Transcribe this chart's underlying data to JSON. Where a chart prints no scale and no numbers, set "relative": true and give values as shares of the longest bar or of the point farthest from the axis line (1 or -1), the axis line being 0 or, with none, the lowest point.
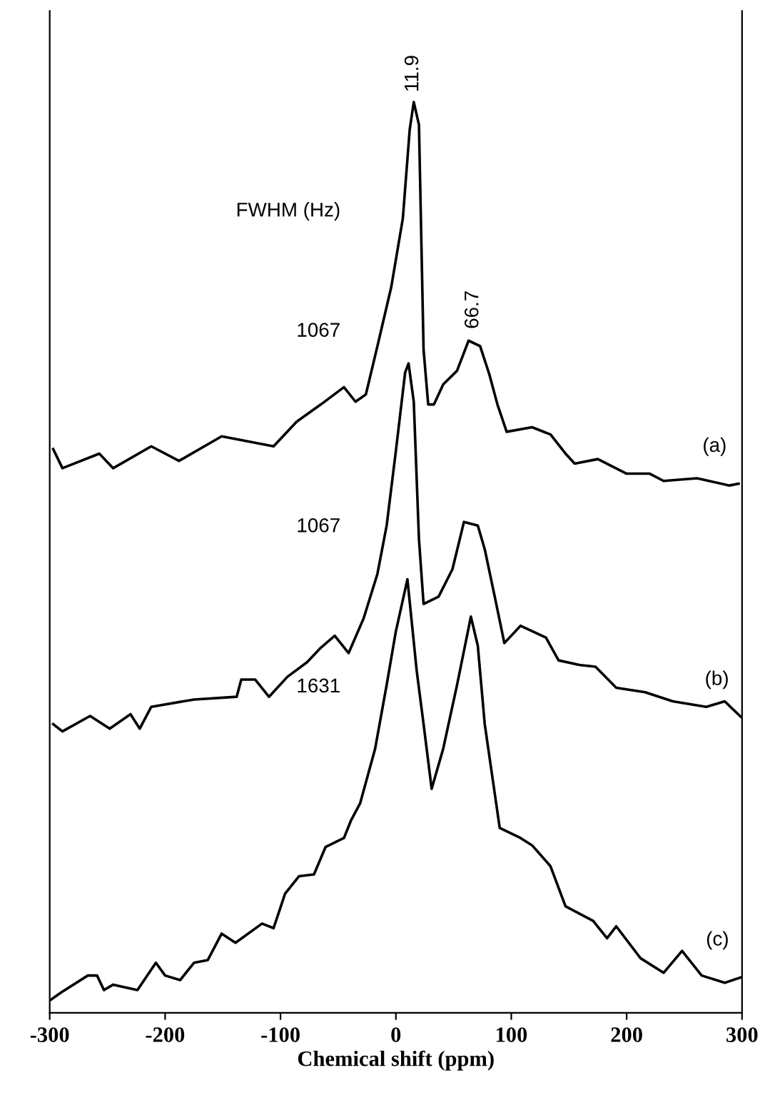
{
  "chart_data": {
    "type": "line",
    "relative": true,
    "xlabel": "Chemical shift (ppm)",
    "xlim": [
      -300,
      300
    ],
    "xticks": [
      -300,
      -200,
      -100,
      0,
      100,
      200,
      300
    ],
    "grid": false,
    "legend": false,
    "marker": "none",
    "line_style": "solid",
    "tick_labels": "x",
    "annotations": [
      {
        "text": "11.9",
        "x": 15,
        "y": 1.0
      },
      {
        "text": "66.7",
        "x": 67,
        "y": 0.74
      },
      "FWHM (Hz)",
      "1067",
      "1067",
      "1631"
    ],
    "series": [
      {
        "name": "(a)",
        "color": "#000000",
        "x": [
          -297,
          -289,
          -257,
          -245,
          -212,
          -188,
          -151,
          -106,
          -86,
          -65,
          -45,
          -35,
          -26,
          -16,
          -4,
          6,
          12,
          15.5,
          20,
          24,
          28,
          33,
          41,
          53,
          63,
          73,
          81,
          88,
          96,
          118,
          134,
          147,
          155,
          175,
          200,
          220,
          232,
          261,
          289,
          297
        ],
        "values": [
          0.619,
          0.598,
          0.614,
          0.598,
          0.622,
          0.606,
          0.633,
          0.622,
          0.649,
          0.668,
          0.687,
          0.671,
          0.679,
          0.732,
          0.797,
          0.872,
          0.97,
          1.0,
          0.975,
          0.728,
          0.668,
          0.668,
          0.69,
          0.705,
          0.738,
          0.732,
          0.701,
          0.668,
          0.638,
          0.643,
          0.635,
          0.614,
          0.603,
          0.608,
          0.592,
          0.592,
          0.584,
          0.587,
          0.579,
          0.581
        ]
      },
      {
        "name": "(b)",
        "color": "#000000",
        "x": [
          -297,
          -289,
          -265,
          -248,
          -230,
          -222,
          -212,
          -175,
          -138,
          -134,
          -122,
          -110,
          -94,
          -77,
          -65,
          -53,
          -41,
          -28,
          -16,
          -8,
          0,
          8,
          11,
          15.5,
          20,
          24,
          37,
          49,
          59,
          71,
          77,
          86,
          94,
          108,
          130,
          141,
          159,
          173,
          191,
          216,
          240,
          269,
          285,
          299
        ],
        "values": [
          0.317,
          0.309,
          0.326,
          0.312,
          0.328,
          0.312,
          0.336,
          0.344,
          0.347,
          0.366,
          0.366,
          0.347,
          0.369,
          0.385,
          0.401,
          0.414,
          0.395,
          0.433,
          0.482,
          0.535,
          0.617,
          0.703,
          0.713,
          0.671,
          0.52,
          0.449,
          0.457,
          0.487,
          0.539,
          0.535,
          0.509,
          0.455,
          0.406,
          0.425,
          0.412,
          0.387,
          0.382,
          0.38,
          0.357,
          0.352,
          0.342,
          0.336,
          0.342,
          0.325
        ]
      },
      {
        "name": "(c)",
        "color": "#000000",
        "x": [
          -299,
          -290,
          -267,
          -259,
          -253,
          -245,
          -224,
          -208,
          -200,
          -187,
          -175,
          -163,
          -151,
          -139,
          -116,
          -106,
          -96,
          -84,
          -71,
          -61,
          -45,
          -39,
          -31,
          -18,
          -8,
          0,
          10,
          18,
          24,
          31,
          41,
          53,
          65,
          71,
          77,
          90,
          108,
          118,
          134,
          147,
          171,
          183,
          191,
          212,
          232,
          248,
          265,
          285,
          299
        ],
        "values": [
          0.0145,
          0.0225,
          0.041,
          0.041,
          0.025,
          0.031,
          0.025,
          0.055,
          0.041,
          0.036,
          0.055,
          0.058,
          0.087,
          0.077,
          0.098,
          0.093,
          0.131,
          0.15,
          0.152,
          0.182,
          0.192,
          0.211,
          0.23,
          0.29,
          0.36,
          0.419,
          0.476,
          0.376,
          0.317,
          0.246,
          0.29,
          0.36,
          0.435,
          0.403,
          0.317,
          0.203,
          0.192,
          0.184,
          0.161,
          0.117,
          0.101,
          0.082,
          0.095,
          0.06,
          0.044,
          0.068,
          0.041,
          0.033,
          0.039
        ]
      }
    ]
  }
}
